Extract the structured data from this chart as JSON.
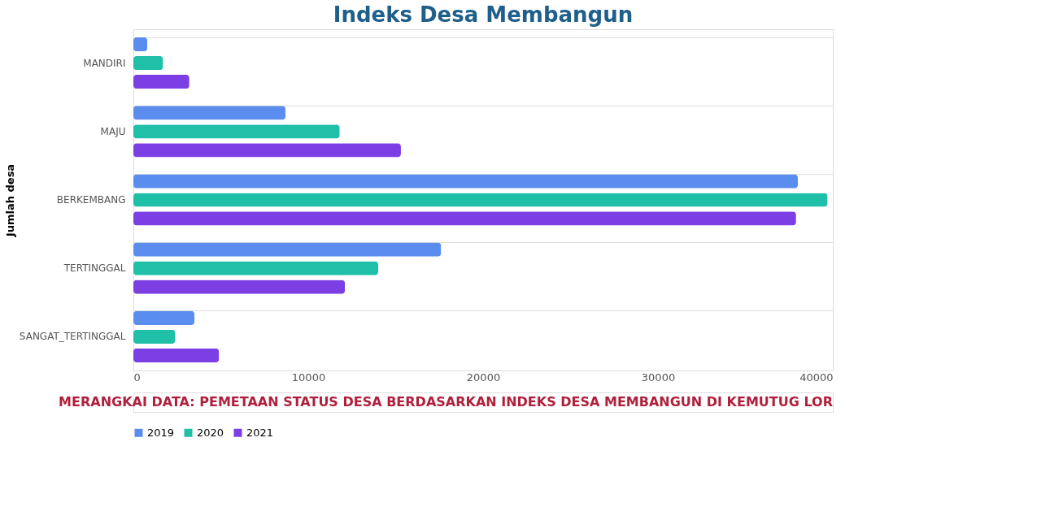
{
  "chart_data": {
    "type": "bar",
    "orientation": "horizontal",
    "title": "Indeks Desa Membangun",
    "ylabel": "Jumlah desa",
    "categories": [
      "MANDIRI",
      "MAJU",
      "BERKEMBANG",
      "TERTINGGAL",
      "SANGAT_TERTINGGAL"
    ],
    "series": [
      {
        "name": "2019",
        "color": "#5b8def",
        "values": [
          800,
          8700,
          38000,
          17600,
          3500
        ]
      },
      {
        "name": "2020",
        "color": "#1fbfa8",
        "values": [
          1700,
          11800,
          39700,
          14000,
          2400
        ]
      },
      {
        "name": "2021",
        "color": "#7b3fe4",
        "values": [
          3200,
          15300,
          37900,
          12100,
          4900
        ]
      }
    ],
    "xlim": [
      0,
      40000
    ],
    "xticks": [
      0,
      10000,
      20000,
      30000,
      40000
    ],
    "grid": "y",
    "legend": "bottom",
    "annotations": [
      "MERANGKAI DATA: PEMETAAN STATUS DESA BERDASARKAN INDEKS DESA MEMBANGUN DI KEMUTUG LOR"
    ]
  }
}
